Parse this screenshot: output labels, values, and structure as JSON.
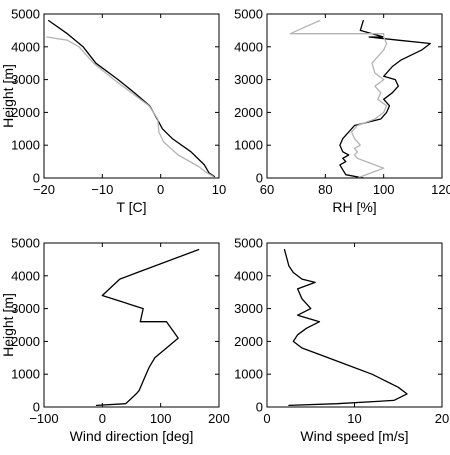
{
  "chart_data": [
    {
      "type": "line",
      "xlabel": "T [C]",
      "ylabel": "Height [m]",
      "xlim": [
        -20,
        10
      ],
      "ylim": [
        0,
        5000
      ],
      "xticks": [
        "−20",
        "−10",
        "0",
        "10"
      ],
      "yticks": [
        "0",
        "1000",
        "2000",
        "3000",
        "4000",
        "5000"
      ],
      "grid": false,
      "series": [
        {
          "color": "#000000",
          "x": [
            9.2,
            8.3,
            7.5,
            5.2,
            2.0,
            0.3,
            -0.6,
            -1.9,
            -4.5,
            -7.3,
            -11.1,
            -13.3,
            -16.0,
            -19.2
          ],
          "y": [
            50,
            150,
            400,
            800,
            1200,
            1500,
            1800,
            2200,
            2600,
            3000,
            3500,
            4000,
            4400,
            4800
          ]
        },
        {
          "color": "#b4b4b4",
          "x": [
            9.0,
            8.0,
            6.5,
            3.0,
            0.5,
            -0.3,
            -0.5,
            -2.0,
            -5.0,
            -8.0,
            -11.5,
            -14.0,
            -16.0,
            -19.5
          ],
          "y": [
            50,
            150,
            350,
            700,
            1100,
            1400,
            1800,
            2200,
            2600,
            3000,
            3500,
            4000,
            4200,
            4300
          ]
        }
      ]
    },
    {
      "type": "line",
      "xlabel": "RH [%]",
      "ylabel": "",
      "xlim": [
        60,
        120
      ],
      "ylim": [
        0,
        5000
      ],
      "xticks": [
        "60",
        "80",
        "100",
        "120"
      ],
      "yticks": [
        "0",
        "1000",
        "2000",
        "3000",
        "4000",
        "5000"
      ],
      "grid": false,
      "series": [
        {
          "color": "#000000",
          "x": [
            93,
            87,
            86,
            85,
            87,
            86,
            88,
            86,
            85,
            86,
            88,
            90,
            99,
            101,
            102,
            100,
            103,
            105,
            104,
            100,
            103,
            106,
            113,
            116,
            105,
            95,
            100,
            92,
            93
          ],
          "y": [
            0,
            100,
            250,
            400,
            500,
            600,
            700,
            800,
            1000,
            1200,
            1400,
            1600,
            1800,
            2000,
            2200,
            2400,
            2600,
            2800,
            3000,
            3100,
            3400,
            3600,
            3900,
            4100,
            4200,
            4300,
            4300,
            4500,
            4800
          ]
        },
        {
          "color": "#b4b4b4",
          "x": [
            91,
            100,
            94,
            91,
            90,
            91,
            90,
            92,
            90,
            89,
            91,
            97,
            100,
            101,
            98,
            99,
            97,
            100,
            97,
            96,
            98,
            100,
            101,
            100,
            100,
            68,
            78
          ],
          "y": [
            0,
            300,
            500,
            600,
            700,
            800,
            900,
            1000,
            1200,
            1400,
            1600,
            1800,
            2000,
            2200,
            2400,
            2600,
            2800,
            3000,
            3200,
            3500,
            3700,
            3900,
            4100,
            4300,
            4400,
            4400,
            4800
          ]
        }
      ]
    },
    {
      "type": "line",
      "xlabel": "Wind direction [deg]",
      "ylabel": "Height [m]",
      "xlim": [
        -100,
        200
      ],
      "ylim": [
        0,
        5000
      ],
      "xticks": [
        "−100",
        "0",
        "100",
        "200"
      ],
      "yticks": [
        "0",
        "1000",
        "2000",
        "3000",
        "4000",
        "5000"
      ],
      "grid": false,
      "series": [
        {
          "color": "#000000",
          "x": [
            -10,
            40,
            58,
            63,
            75,
            80,
            90,
            110,
            130,
            110,
            65,
            70,
            0,
            30,
            60,
            165
          ],
          "y": [
            50,
            100,
            400,
            500,
            1000,
            1200,
            1500,
            1800,
            2100,
            2600,
            2600,
            3000,
            3400,
            3900,
            4100,
            4800
          ]
        }
      ]
    },
    {
      "type": "line",
      "xlabel": "Wind speed [m/s]",
      "ylabel": "",
      "xlim": [
        0,
        20
      ],
      "ylim": [
        0,
        5000
      ],
      "xticks": [
        "0",
        "10",
        "20"
      ],
      "yticks": [
        "0",
        "1000",
        "2000",
        "3000",
        "4000",
        "5000"
      ],
      "grid": false,
      "series": [
        {
          "color": "#000000",
          "x": [
            2.5,
            8,
            14.5,
            16,
            15,
            12,
            9,
            6,
            4,
            3,
            3.5,
            4.5,
            6,
            3.5,
            5,
            4,
            3.5,
            5.5,
            4,
            3,
            2.5,
            2.0
          ],
          "y": [
            50,
            100,
            200,
            400,
            600,
            1000,
            1300,
            1600,
            1800,
            2000,
            2200,
            2400,
            2600,
            2800,
            3000,
            3300,
            3600,
            3800,
            3900,
            4100,
            4300,
            4800
          ]
        }
      ]
    }
  ]
}
